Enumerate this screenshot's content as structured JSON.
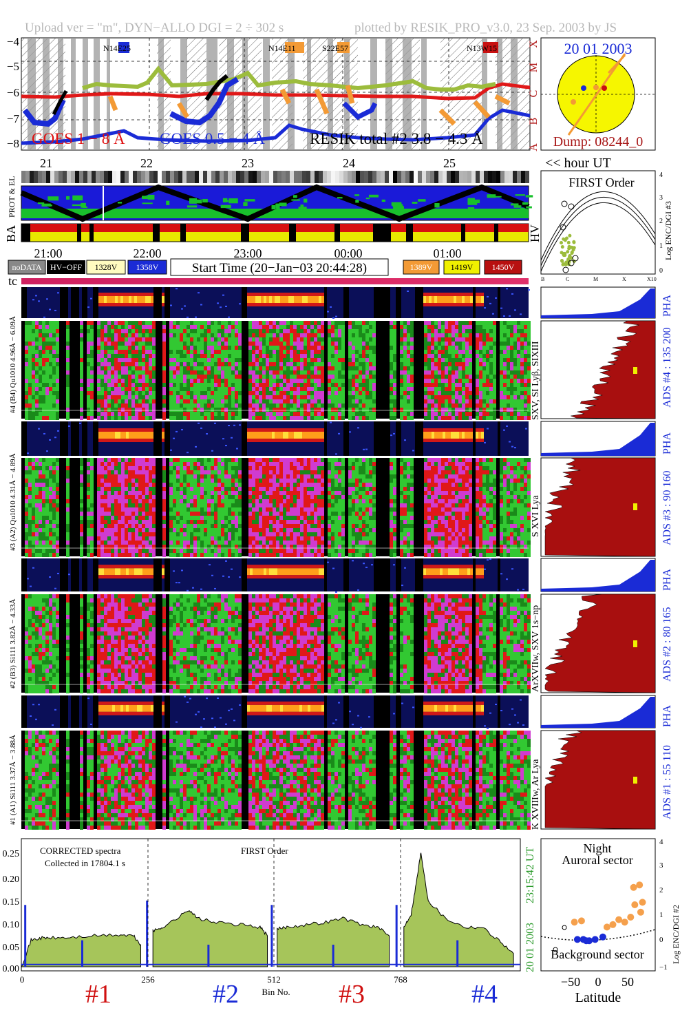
{
  "header": {
    "left": "Upload ver = \"m\", DYN−ALLO DGI =   2 ÷ 302 s",
    "right": "plotted by RESIK_PRO_v3.0, 23 Sep. 2003 by JS"
  },
  "goes": {
    "yticks": [
      "−4",
      "−5",
      "−6",
      "−7",
      "−8"
    ],
    "classes": [
      "X",
      "M",
      "C",
      "B",
      "A"
    ],
    "regions": [
      "N14E25",
      "N14E11",
      "S22E57",
      "N13W15"
    ],
    "legend_goes1": "GOES 1 − 8 Å",
    "legend_goes05": "GOES 0.5 − 4 Å",
    "legend_resik": "RESIK total #2  3.8 − 4.3 Å"
  },
  "sun": {
    "date": "20 01 2003",
    "dump": "Dump: 08244_0"
  },
  "hour_axis": {
    "labels": [
      "21",
      "22",
      "23",
      "24",
      "25"
    ],
    "unit": "<< hour UT"
  },
  "status": {
    "prot_el": "PROT & EL",
    "ba": "BA",
    "hv": "HV"
  },
  "time_axis": [
    "21:00",
    "22:00",
    "23:00",
    "00:00",
    "01:00"
  ],
  "legend_boxes": {
    "nodata": "noDATA",
    "hvoff": "HV−OFF",
    "v1328": "1328V",
    "v1358": "1358V",
    "start": "Start Time (20−Jan−03 20:44:28)",
    "v1389": "1389V",
    "v1419": "1419V",
    "v1450": "1450V"
  },
  "tc": "tc",
  "first_order": {
    "title": "FIRST Order",
    "ylabel": "Log ENC/DGI #3",
    "yticks": [
      "4",
      "3",
      "2",
      "1",
      "0"
    ],
    "xticks": [
      "B",
      "C",
      "M",
      "X",
      "X10"
    ]
  },
  "channels": [
    {
      "pha_label": "#4 (B4) Qu1010 4.96Å − 6.09Å",
      "spec_label": "SXV, SI Lyβ, SIXIII",
      "ads": "ADS #4 :   135 200",
      "pha": "PHA"
    },
    {
      "pha_label": "#3 (A2) Qu1010  4.31Å − 4.89Å",
      "spec_label": "S XVI Lya",
      "ads": "ADS #3 :   90 160",
      "pha": "PHA"
    },
    {
      "pha_label": "#2 (B3) Si111  3.82Å − 4.33Å",
      "spec_label": "ArXVIIw, SXV 1s−np",
      "ads": "ADS #2 :   80 165",
      "pha": "PHA"
    },
    {
      "pha_label": "#1 (A1) Si111  3.37Å − 3.88Å",
      "spec_label": "K XVIIIw, Ar Lya",
      "ads": "ADS #1 :   55 110",
      "pha": "PHA"
    }
  ],
  "spectrum": {
    "note1": "CORRECTED spectra",
    "note2": "Collected in 17804.1 s",
    "note3": "FIRST Order",
    "yticks": [
      "0.25",
      "0.20",
      "0.15",
      "0.10",
      "0.05",
      "0.00"
    ],
    "xticks": [
      "0",
      "256",
      "512",
      "768"
    ],
    "xlabel": "Bin No.",
    "detectors": [
      "#1",
      "#2",
      "#3",
      "#4"
    ],
    "side_time": "23:15:42 UT",
    "side_date": "20 01 2003"
  },
  "aurora": {
    "night": "Night",
    "sector": "Auroral sector",
    "background": "Background sector",
    "ylabel": "Log ENC/DGI #2",
    "yticks": [
      "4",
      "3",
      "2",
      "1",
      "0",
      "−1"
    ],
    "xticks": [
      "−50",
      "0",
      "50"
    ],
    "xlabel": "Latitude"
  },
  "chart_data": {
    "type": "area",
    "title": "",
    "xlabel": "Bin No.",
    "ylabel": "",
    "xlim": [
      0,
      1024
    ],
    "ylim": [
      0,
      0.27
    ],
    "x_ticks": [
      0,
      256,
      512,
      768
    ],
    "segments": [
      {
        "name": "#1",
        "x": [
          0,
          20,
          40,
          60,
          100,
          150,
          200,
          230,
          245
        ],
        "y": [
          0.0,
          0.06,
          0.065,
          0.065,
          0.066,
          0.07,
          0.072,
          0.07,
          0.05
        ]
      },
      {
        "name": "#2",
        "x": [
          270,
          290,
          320,
          345,
          360,
          400,
          450,
          490,
          505
        ],
        "y": [
          0.08,
          0.09,
          0.11,
          0.13,
          0.11,
          0.1,
          0.095,
          0.09,
          0.07
        ]
      },
      {
        "name": "#3",
        "x": [
          525,
          545,
          580,
          620,
          660,
          700,
          730,
          755
        ],
        "y": [
          0.085,
          0.09,
          0.095,
          0.1,
          0.11,
          0.095,
          0.09,
          0.07
        ]
      },
      {
        "name": "#4",
        "x": [
          785,
          800,
          812,
          820,
          835,
          870,
          910,
          945,
          980,
          1010
        ],
        "y": [
          0.09,
          0.12,
          0.2,
          0.26,
          0.15,
          0.11,
          0.09,
          0.09,
          0.06,
          0.03
        ]
      }
    ],
    "pulses": {
      "x": [
        8,
        125,
        258,
        384,
        514,
        640,
        770,
        895
      ],
      "y": [
        0.14,
        0.06,
        0.15,
        0.05,
        0.14,
        0.05,
        0.14,
        0.06
      ]
    },
    "aurora_points": {
      "background": [
        [
          -35,
          0.1
        ],
        [
          -25,
          0.1
        ],
        [
          -15,
          0.05
        ],
        [
          -5,
          0.1
        ],
        [
          8,
          0.2
        ],
        [
          -20,
          0.05
        ]
      ],
      "auroral": [
        [
          -40,
          0.8
        ],
        [
          -28,
          0.85
        ],
        [
          15,
          0.6
        ],
        [
          25,
          0.7
        ],
        [
          45,
          0.8
        ],
        [
          55,
          1.0
        ],
        [
          62,
          1.5
        ],
        [
          70,
          2.3
        ],
        [
          75,
          1.6
        ],
        [
          60,
          2.2
        ],
        [
          72,
          1.2
        ],
        [
          35,
          0.9
        ]
      ]
    }
  }
}
